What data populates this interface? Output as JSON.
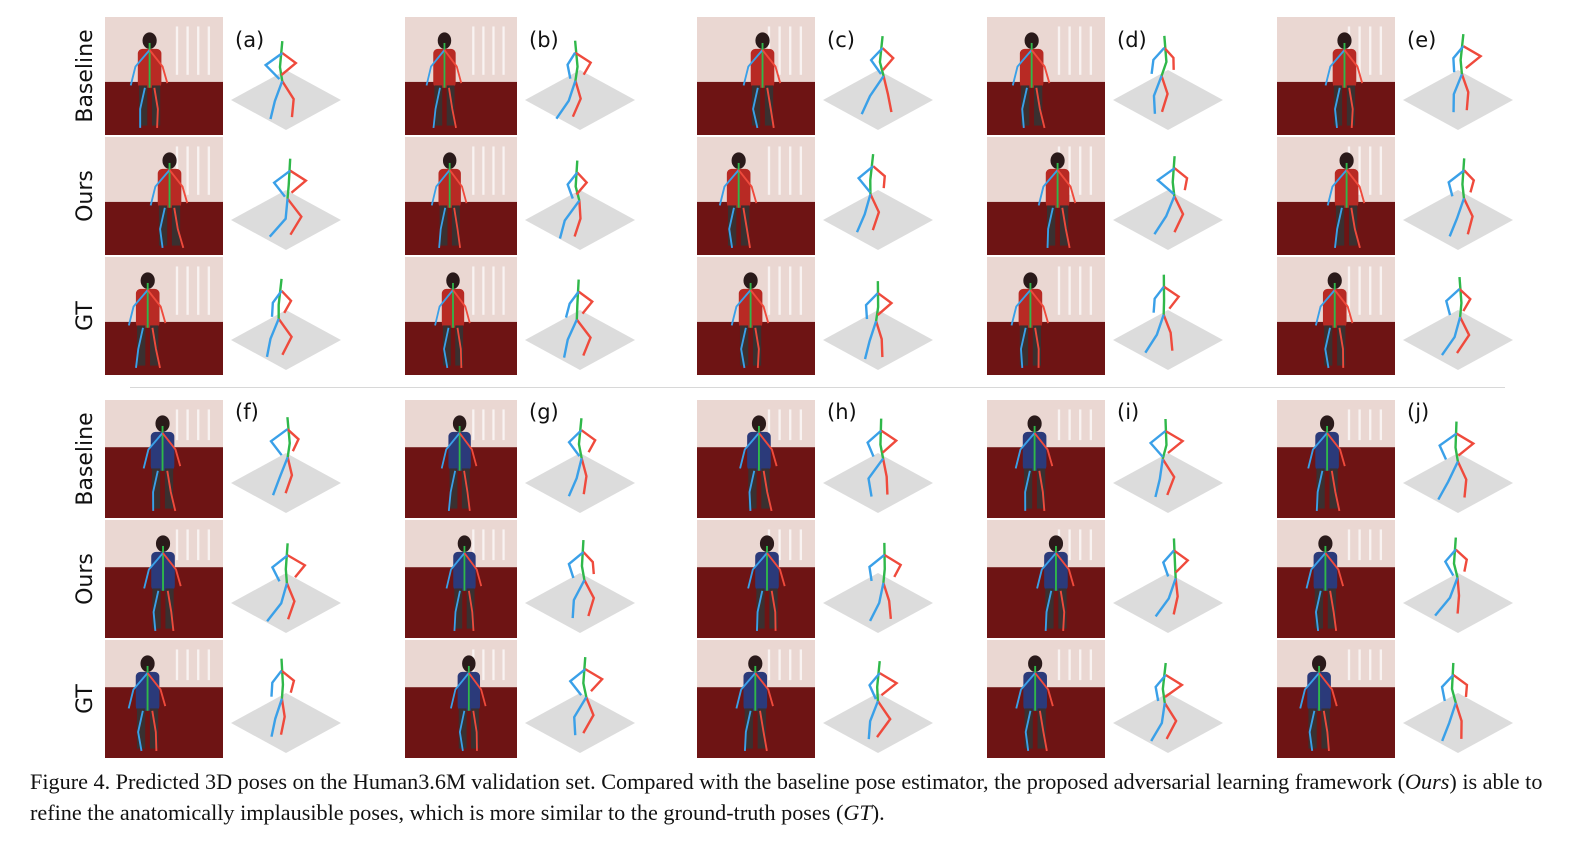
{
  "row_labels": [
    "Baseline",
    "Ours",
    "GT",
    "Baseline",
    "Ours",
    "GT"
  ],
  "panel_letters": [
    "(a)",
    "(b)",
    "(c)",
    "(d)",
    "(e)",
    "(f)",
    "(g)",
    "(h)",
    "(i)",
    "(j)"
  ],
  "caption": {
    "prefix": "Figure 4. Predicted 3D poses on the Human3.6M validation set.  Compared with the baseline pose estimator, the proposed adversarial learning framework (",
    "ours": "Ours",
    "middle": ") is able to refine the anatomically implausible poses, which is more similar to the ground-truth poses (",
    "gt": "GT",
    "suffix": ")."
  },
  "colors": {
    "left_limb": "#ef4a3c",
    "right_limb": "#3aa0e8",
    "spine": "#2fb84a",
    "ground": "#dcdcdc",
    "indoor_scene": "#6e1414",
    "wall": "#ead7d2"
  }
}
